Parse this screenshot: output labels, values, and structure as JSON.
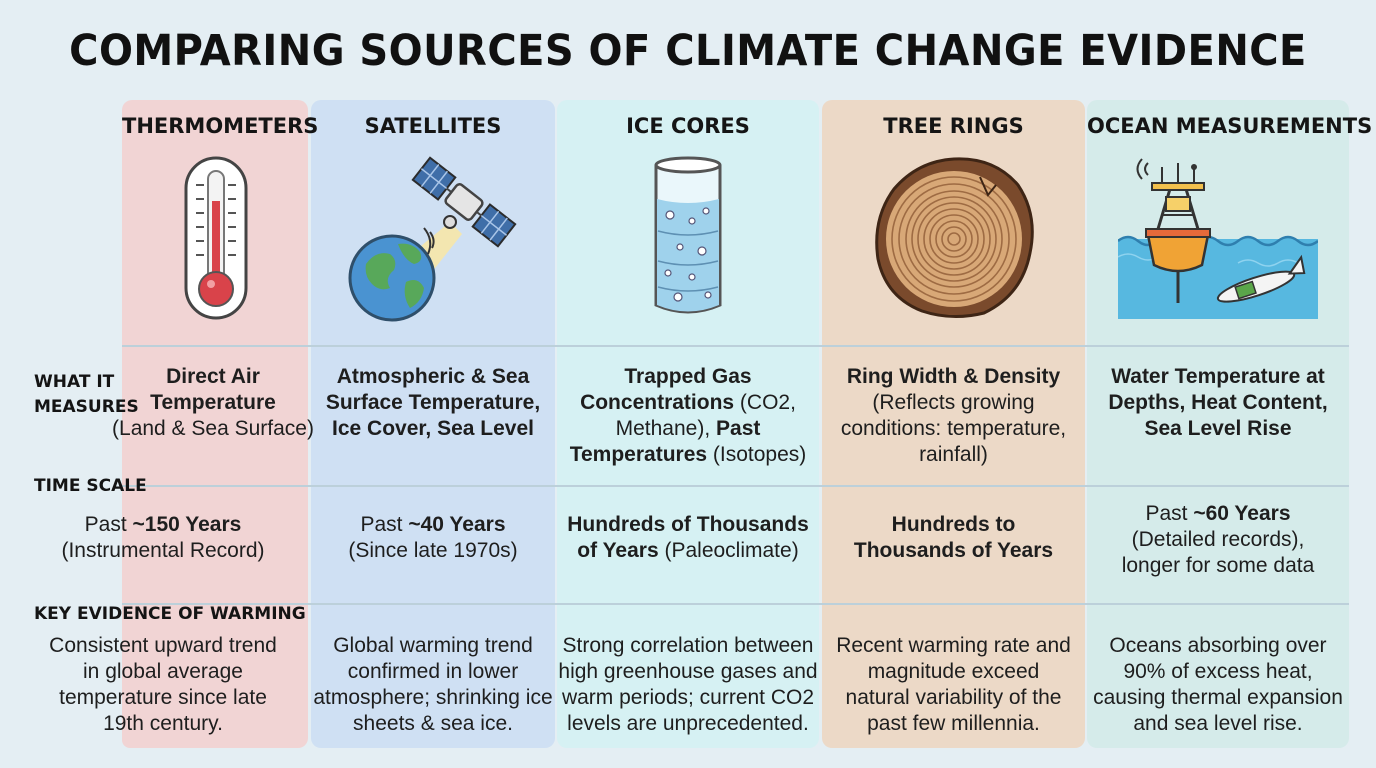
{
  "title": "COMPARING SOURCES OF CLIMATE CHANGE EVIDENCE",
  "columns": [
    {
      "name": "THERMOMETERS",
      "icon": "thermometer-icon",
      "color": "#f1d4d4"
    },
    {
      "name": "SATELLITES",
      "icon": "satellite-earth-icon",
      "color": "#cfe0f3"
    },
    {
      "name": "ICE CORES",
      "icon": "ice-core-cylinder-icon",
      "color": "#d6f1f3"
    },
    {
      "name": "TREE RINGS",
      "icon": "tree-rings-icon",
      "color": "#ecd9c7"
    },
    {
      "name": "OCEAN MEASUREMENTS",
      "icon": "ocean-buoy-icon",
      "color": "#d5ebea"
    }
  ],
  "row_labels": {
    "what_it_measures_1": "WHAT IT",
    "what_it_measures_2": "MEASURES",
    "time_scale": "TIME SCALE",
    "key_evidence": "KEY EVIDENCE OF WARMING"
  },
  "measures": {
    "thermometers": {
      "bold": "Direct Air\nTemperature",
      "normal": "(Land & Sea Surface)"
    },
    "satellites": {
      "bold": "Atmospheric & Sea\nSurface Temperature,\nIce Cover, Sea Level"
    },
    "ice_cores": {
      "line1": "Trapped Gas",
      "line2_bold": "Concentrations",
      "line2": " (CO2,",
      "line3": "Methane), ",
      "line3_bold": "Past",
      "line4_bold": "Temperatures",
      "line4": " (Isotopes)"
    },
    "tree_rings": {
      "bold": "Ring Width & Density",
      "normal": "(Reflects growing\nconditions: temperature,\nrainfall)"
    },
    "ocean": {
      "bold": "Water Temperature at\nDepths, Heat Content,\nSea Level Rise"
    }
  },
  "time_scale": {
    "thermometers": {
      "prefix": "Past ",
      "bold": "~150 Years",
      "normal": "(Instrumental Record)"
    },
    "satellites": {
      "prefix": "Past ",
      "bold": "~40 Years",
      "normal": "(Since late 1970s)"
    },
    "ice_cores": {
      "bold1": "Hundreds of Thousands",
      "bold2": "of Years",
      "normal": " (Paleoclimate)"
    },
    "tree_rings": {
      "bold": "Hundreds to\nThousands of Years"
    },
    "ocean": {
      "prefix": "Past ",
      "bold": "~60 Years",
      "normal": "(Detailed records),\nlonger for some data"
    }
  },
  "key_evidence": {
    "thermometers": "Consistent upward trend\nin global average\ntemperature since late\n19th century.",
    "satellites": "Global warming trend\nconfirmed in lower\natmosphere; shrinking ice\nsheets & sea ice.",
    "ice_cores": "Strong correlation between\nhigh greenhouse gases and\nwarm periods; current CO2\nlevels are unprecedented.",
    "tree_rings": "Recent warming rate and\nmagnitude exceed\nnatural variability of the\npast few millennia.",
    "ocean": "Oceans absorbing over\n90% of excess heat,\ncausing thermal expansion\nand sea level rise."
  }
}
